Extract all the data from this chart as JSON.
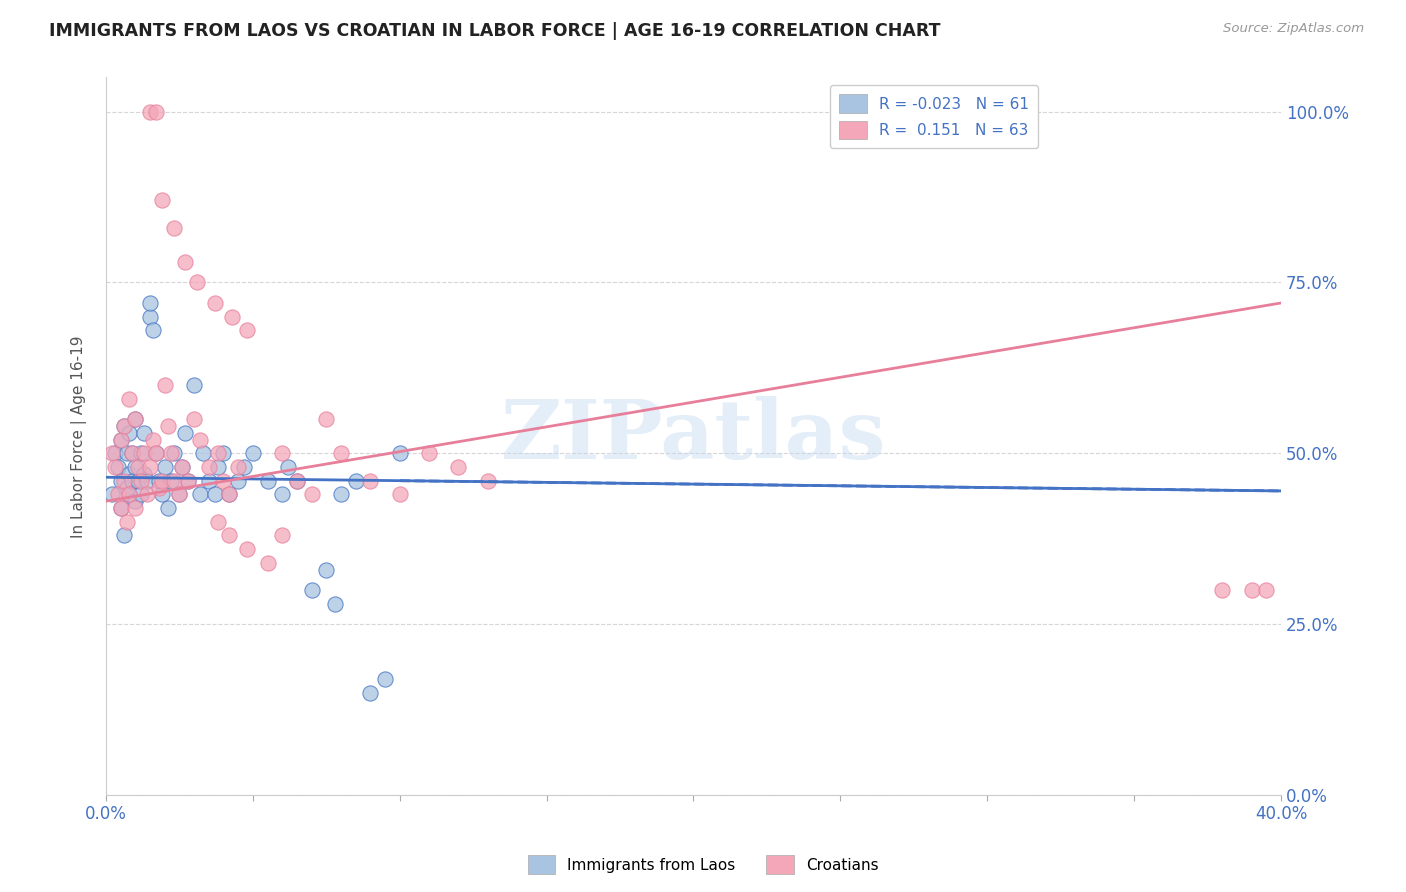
{
  "title": "IMMIGRANTS FROM LAOS VS CROATIAN IN LABOR FORCE | AGE 16-19 CORRELATION CHART",
  "source": "Source: ZipAtlas.com",
  "ylabel": "In Labor Force | Age 16-19",
  "ytick_labels": [
    "0.0%",
    "25.0%",
    "50.0%",
    "75.0%",
    "100.0%"
  ],
  "ytick_values": [
    0.0,
    0.25,
    0.5,
    0.75,
    1.0
  ],
  "xlim": [
    0.0,
    0.4
  ],
  "ylim": [
    0.0,
    1.05
  ],
  "legend_r_laos": "-0.023",
  "legend_n_laos": "61",
  "legend_r_croatian": "0.151",
  "legend_n_croatian": "63",
  "color_laos": "#a8c4e0",
  "color_croatian": "#f4a7b9",
  "color_laos_line": "#4472c4",
  "color_croatian_line": "#e87f9a",
  "color_axis_labels": "#4472c4",
  "laos_line_y0": 0.465,
  "laos_line_y1": 0.445,
  "croatian_line_y0": 0.43,
  "croatian_line_y1": 0.72,
  "laos_x": [
    0.002,
    0.003,
    0.004,
    0.005,
    0.005,
    0.005,
    0.006,
    0.006,
    0.007,
    0.007,
    0.008,
    0.008,
    0.008,
    0.009,
    0.009,
    0.01,
    0.01,
    0.01,
    0.011,
    0.012,
    0.012,
    0.013,
    0.013,
    0.014,
    0.015,
    0.015,
    0.016,
    0.017,
    0.018,
    0.019,
    0.02,
    0.021,
    0.022,
    0.023,
    0.025,
    0.026,
    0.027,
    0.028,
    0.03,
    0.032,
    0.033,
    0.035,
    0.037,
    0.038,
    0.04,
    0.042,
    0.045,
    0.047,
    0.05,
    0.055,
    0.06,
    0.062,
    0.065,
    0.07,
    0.075,
    0.078,
    0.08,
    0.085,
    0.09,
    0.095,
    0.1
  ],
  "laos_y": [
    0.44,
    0.5,
    0.48,
    0.42,
    0.46,
    0.52,
    0.38,
    0.54,
    0.45,
    0.5,
    0.44,
    0.47,
    0.53,
    0.46,
    0.5,
    0.43,
    0.48,
    0.55,
    0.46,
    0.44,
    0.5,
    0.47,
    0.53,
    0.46,
    0.7,
    0.72,
    0.68,
    0.5,
    0.46,
    0.44,
    0.48,
    0.42,
    0.46,
    0.5,
    0.44,
    0.48,
    0.53,
    0.46,
    0.6,
    0.44,
    0.5,
    0.46,
    0.44,
    0.48,
    0.5,
    0.44,
    0.46,
    0.48,
    0.5,
    0.46,
    0.44,
    0.48,
    0.46,
    0.3,
    0.33,
    0.28,
    0.44,
    0.46,
    0.15,
    0.17,
    0.5
  ],
  "croatian_x": [
    0.002,
    0.003,
    0.004,
    0.005,
    0.005,
    0.006,
    0.006,
    0.007,
    0.008,
    0.008,
    0.009,
    0.01,
    0.01,
    0.011,
    0.012,
    0.013,
    0.014,
    0.015,
    0.016,
    0.017,
    0.018,
    0.019,
    0.02,
    0.021,
    0.022,
    0.023,
    0.025,
    0.026,
    0.028,
    0.03,
    0.032,
    0.035,
    0.038,
    0.04,
    0.042,
    0.045,
    0.06,
    0.065,
    0.07,
    0.075,
    0.08,
    0.09,
    0.1,
    0.11,
    0.12,
    0.13,
    0.015,
    0.017,
    0.019,
    0.023,
    0.027,
    0.031,
    0.037,
    0.043,
    0.048,
    0.038,
    0.042,
    0.048,
    0.055,
    0.06,
    0.38,
    0.39,
    0.395
  ],
  "croatian_y": [
    0.5,
    0.48,
    0.44,
    0.52,
    0.42,
    0.54,
    0.46,
    0.4,
    0.44,
    0.58,
    0.5,
    0.42,
    0.55,
    0.48,
    0.46,
    0.5,
    0.44,
    0.48,
    0.52,
    0.5,
    0.45,
    0.46,
    0.6,
    0.54,
    0.5,
    0.46,
    0.44,
    0.48,
    0.46,
    0.55,
    0.52,
    0.48,
    0.5,
    0.46,
    0.44,
    0.48,
    0.5,
    0.46,
    0.44,
    0.55,
    0.5,
    0.46,
    0.44,
    0.5,
    0.48,
    0.46,
    1.0,
    1.0,
    0.87,
    0.83,
    0.78,
    0.75,
    0.72,
    0.7,
    0.68,
    0.4,
    0.38,
    0.36,
    0.34,
    0.38,
    0.3,
    0.3,
    0.3
  ]
}
